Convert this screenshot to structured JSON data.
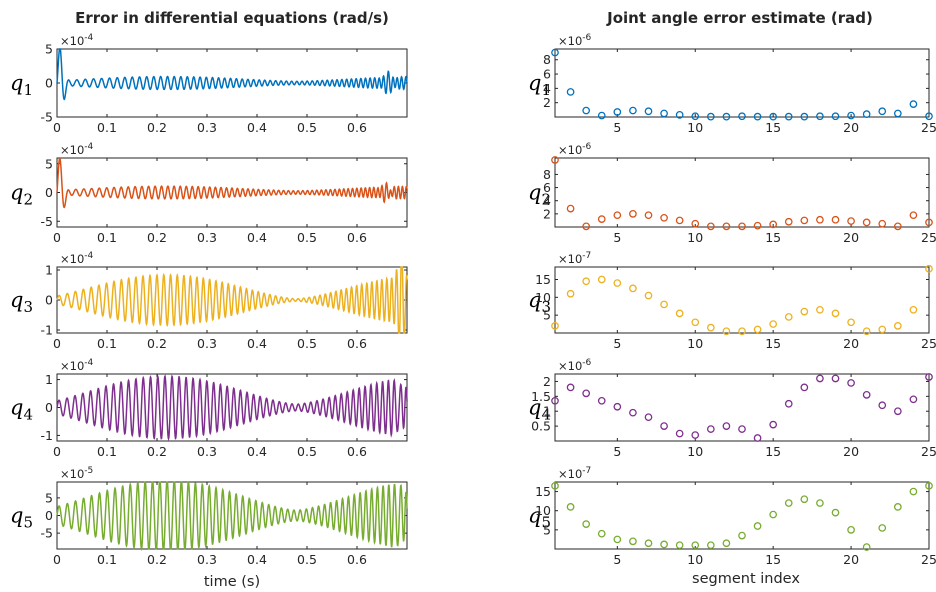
{
  "chart_data": [
    {
      "type": "line",
      "title": "Error in differential equations (rad/s)",
      "ylabel": "q",
      "ylabel_sub": "1",
      "multiplier": "×10",
      "multiplier_exp": "-4",
      "xlim": [
        0,
        0.7
      ],
      "ylim": [
        -5,
        5
      ],
      "xticks": [
        0,
        0.1,
        0.2,
        0.3,
        0.4,
        0.5,
        0.6
      ],
      "yticks": [
        -5,
        0,
        5
      ],
      "xticklabels": [
        "0",
        "0.1",
        "0.2",
        "0.3",
        "0.4",
        "0.5",
        "0.6"
      ],
      "yticklabels": [
        "-5",
        "0",
        "5"
      ],
      "color": "#0072BD",
      "signal": {
        "f0": 55,
        "f1": 85,
        "af": 0.7,
        "ap": 5.0,
        "tp": 0.007,
        "sp": 0.009,
        "ac": 0.25,
        "ae": 0.9,
        "te": 0.663,
        "se": 0.012
      }
    },
    {
      "type": "line",
      "ylabel": "q",
      "ylabel_sub": "2",
      "multiplier": "×10",
      "multiplier_exp": "-4",
      "xlim": [
        0,
        0.7
      ],
      "ylim": [
        -6,
        6
      ],
      "xticks": [
        0,
        0.1,
        0.2,
        0.3,
        0.4,
        0.5,
        0.6
      ],
      "yticks": [
        -5,
        0,
        5
      ],
      "xticklabels": [
        "0",
        "0.1",
        "0.2",
        "0.3",
        "0.4",
        "0.5",
        "0.6"
      ],
      "yticklabels": [
        "-5",
        "0",
        "5"
      ],
      "color": "#D95319",
      "signal": {
        "f0": 58,
        "f1": 92,
        "af": 0.8,
        "ap": 5.6,
        "tp": 0.006,
        "sp": 0.01,
        "ac": 0.3,
        "ae": 0.9,
        "te": 0.66,
        "se": 0.012
      }
    },
    {
      "type": "line",
      "ylabel": "q",
      "ylabel_sub": "3",
      "multiplier": "×10",
      "multiplier_exp": "-4",
      "xlim": [
        0,
        0.7
      ],
      "ylim": [
        -1.1,
        1.1
      ],
      "xticks": [
        0,
        0.1,
        0.2,
        0.3,
        0.4,
        0.5,
        0.6
      ],
      "yticks": [
        -1,
        0,
        1
      ],
      "xticklabels": [
        "0",
        "0.1",
        "0.2",
        "0.3",
        "0.4",
        "0.5",
        "0.6"
      ],
      "yticklabels": [
        "-1",
        "0",
        "1"
      ],
      "color": "#EDB120",
      "signal": {
        "f0": 60,
        "f1": 82,
        "af": 0.8,
        "ap": 0,
        "tp": 0.01,
        "sp": 0.01,
        "ac": 0.04,
        "ae": 0.95,
        "te": 0.69,
        "se": 0.01
      }
    },
    {
      "type": "line",
      "ylabel": "q",
      "ylabel_sub": "4",
      "multiplier": "×10",
      "multiplier_exp": "-4",
      "xlim": [
        0,
        0.7
      ],
      "ylim": [
        -1.2,
        1.2
      ],
      "xticks": [
        0,
        0.1,
        0.2,
        0.3,
        0.4,
        0.5,
        0.6
      ],
      "yticks": [
        -1,
        0,
        1
      ],
      "xticklabels": [
        "0",
        "0.1",
        "0.2",
        "0.3",
        "0.4",
        "0.5",
        "0.6"
      ],
      "yticklabels": [
        "-1",
        "0",
        "1"
      ],
      "color": "#7E2F8E",
      "signal": {
        "f0": 62,
        "f1": 75,
        "af": 1.0,
        "ap": 0,
        "tp": 0.01,
        "sp": 0.01,
        "ac": 0.12,
        "ae": 1.0,
        "te": 0.69,
        "se": 0.01
      }
    },
    {
      "type": "line",
      "ylabel": "q",
      "ylabel_sub": "5",
      "multiplier": "×10",
      "multiplier_exp": "-5",
      "xlim": [
        0,
        0.7
      ],
      "ylim": [
        -9.5,
        9.5
      ],
      "xticks": [
        0,
        0.1,
        0.2,
        0.3,
        0.4,
        0.5,
        0.6
      ],
      "yticks": [
        -5,
        0,
        5
      ],
      "xticklabels": [
        "0",
        "0.1",
        "0.2",
        "0.3",
        "0.4",
        "0.5",
        "0.6"
      ],
      "yticklabels": [
        "-5",
        "0",
        "5"
      ],
      "color": "#77AC30",
      "signal": {
        "f0": 60,
        "f1": 75,
        "af": 8.5,
        "ap": 0,
        "tp": 0.01,
        "sp": 0.01,
        "ac": 1.5,
        "ae": 9.0,
        "te": 0.69,
        "se": 0.01
      }
    },
    {
      "type": "scatter",
      "title": "Joint angle error estimate (rad)",
      "ylabel": "q",
      "ylabel_sub": "1",
      "multiplier": "×10",
      "multiplier_exp": "-6",
      "xlim": [
        1,
        25
      ],
      "ylim": [
        0,
        9.5
      ],
      "xticks": [
        5,
        10,
        15,
        20,
        25
      ],
      "yticks": [
        2,
        4,
        6,
        8
      ],
      "xticklabels": [
        "5",
        "10",
        "15",
        "20",
        "25"
      ],
      "yticklabels": [
        "2",
        "4",
        "6",
        "8"
      ],
      "color": "#0072BD",
      "x": [
        1,
        2,
        3,
        4,
        5,
        6,
        7,
        8,
        9,
        10,
        11,
        12,
        13,
        14,
        15,
        16,
        17,
        18,
        19,
        20,
        21,
        22,
        23,
        24,
        25
      ],
      "y": [
        9.0,
        3.5,
        0.9,
        0.2,
        0.7,
        0.9,
        0.8,
        0.5,
        0.3,
        0.1,
        0.05,
        0.05,
        0.1,
        0.05,
        0.05,
        0.05,
        0.05,
        0.1,
        0.1,
        0.2,
        0.4,
        0.8,
        0.5,
        1.8,
        0.1
      ]
    },
    {
      "type": "scatter",
      "ylabel": "q",
      "ylabel_sub": "2",
      "multiplier": "×10",
      "multiplier_exp": "-6",
      "xlim": [
        1,
        25
      ],
      "ylim": [
        0,
        10.5
      ],
      "xticks": [
        5,
        10,
        15,
        20,
        25
      ],
      "yticks": [
        2,
        4,
        6,
        8
      ],
      "xticklabels": [
        "5",
        "10",
        "15",
        "20",
        "25"
      ],
      "yticklabels": [
        "2",
        "4",
        "6",
        "8"
      ],
      "color": "#D95319",
      "x": [
        1,
        2,
        3,
        4,
        5,
        6,
        7,
        8,
        9,
        10,
        11,
        12,
        13,
        14,
        15,
        16,
        17,
        18,
        19,
        20,
        21,
        22,
        23,
        24,
        25
      ],
      "y": [
        10.2,
        2.8,
        0.1,
        1.2,
        1.8,
        2.0,
        1.8,
        1.4,
        1.0,
        0.5,
        0.1,
        0.1,
        0.1,
        0.2,
        0.4,
        0.8,
        1.0,
        1.1,
        1.1,
        0.9,
        0.7,
        0.5,
        0.1,
        1.8,
        0.7
      ]
    },
    {
      "type": "scatter",
      "ylabel": "q",
      "ylabel_sub": "3",
      "multiplier": "×10",
      "multiplier_exp": "-7",
      "xlim": [
        1,
        25
      ],
      "ylim": [
        0,
        18.5
      ],
      "xticks": [
        5,
        10,
        15,
        20,
        25
      ],
      "yticks": [
        5,
        10,
        15
      ],
      "xticklabels": [
        "5",
        "10",
        "15",
        "20",
        "25"
      ],
      "yticklabels": [
        "5",
        "10",
        "15"
      ],
      "color": "#EDB120",
      "x": [
        1,
        2,
        3,
        4,
        5,
        6,
        7,
        8,
        9,
        10,
        11,
        12,
        13,
        14,
        15,
        16,
        17,
        18,
        19,
        20,
        21,
        22,
        23,
        24,
        25
      ],
      "y": [
        2.0,
        11.0,
        14.5,
        15.0,
        14.0,
        12.5,
        10.5,
        8.0,
        5.5,
        3.0,
        1.5,
        0.5,
        0.5,
        1.0,
        2.5,
        4.5,
        6.0,
        6.5,
        5.5,
        3.0,
        0.5,
        1.0,
        2.0,
        6.5,
        18.0
      ]
    },
    {
      "type": "scatter",
      "ylabel": "q",
      "ylabel_sub": "4",
      "multiplier": "×10",
      "multiplier_exp": "-6",
      "xlim": [
        1,
        25
      ],
      "ylim": [
        0,
        2.25
      ],
      "xticks": [
        5,
        10,
        15,
        20,
        25
      ],
      "yticks": [
        0.5,
        1,
        1.5,
        2
      ],
      "xticklabels": [
        "5",
        "10",
        "15",
        "20",
        "25"
      ],
      "yticklabels": [
        "0.5",
        "1",
        "1.5",
        "2"
      ],
      "color": "#7E2F8E",
      "x": [
        1,
        2,
        3,
        4,
        5,
        6,
        7,
        8,
        9,
        10,
        11,
        12,
        13,
        14,
        15,
        16,
        17,
        18,
        19,
        20,
        21,
        22,
        23,
        24,
        25
      ],
      "y": [
        1.35,
        1.8,
        1.6,
        1.35,
        1.15,
        0.95,
        0.8,
        0.5,
        0.25,
        0.2,
        0.4,
        0.5,
        0.4,
        0.1,
        0.55,
        1.25,
        1.8,
        2.1,
        2.1,
        1.95,
        1.55,
        1.2,
        1.0,
        1.4,
        2.15
      ]
    },
    {
      "type": "scatter",
      "ylabel": "q",
      "ylabel_sub": "5",
      "multiplier": "×10",
      "multiplier_exp": "-7",
      "xlim": [
        1,
        25
      ],
      "ylim": [
        0,
        17.5
      ],
      "xticks": [
        5,
        10,
        15,
        20,
        25
      ],
      "yticks": [
        5,
        10,
        15
      ],
      "xticklabels": [
        "5",
        "10",
        "15",
        "20",
        "25"
      ],
      "yticklabels": [
        "5",
        "10",
        "15"
      ],
      "color": "#77AC30",
      "x": [
        1,
        2,
        3,
        4,
        5,
        6,
        7,
        8,
        9,
        10,
        11,
        12,
        13,
        14,
        15,
        16,
        17,
        18,
        19,
        20,
        21,
        22,
        23,
        24,
        25
      ],
      "y": [
        16.5,
        11.0,
        6.5,
        4.0,
        2.5,
        2.0,
        1.5,
        1.2,
        1.0,
        1.0,
        1.0,
        1.5,
        3.5,
        6.0,
        9.0,
        12.0,
        13.0,
        12.0,
        9.5,
        5.0,
        0.5,
        5.5,
        11.0,
        15.0,
        16.5
      ]
    }
  ],
  "xlabels": {
    "left": "time (s)",
    "right": "segment index"
  }
}
